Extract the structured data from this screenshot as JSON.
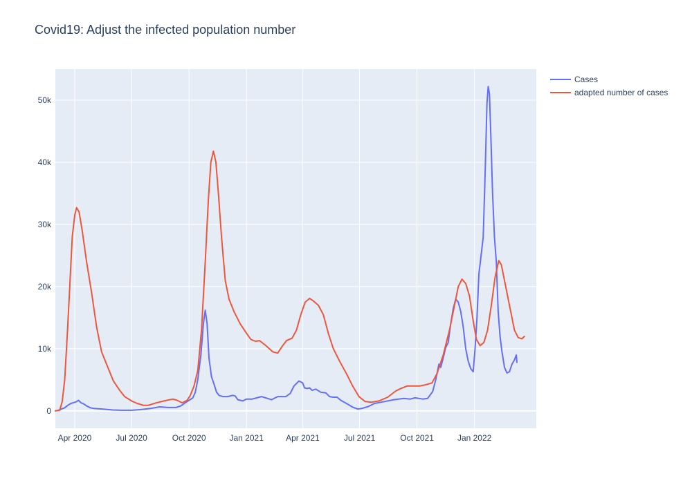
{
  "chart_data": {
    "type": "line",
    "title": "Covid19: Adjust the infected population number",
    "xlabel": "",
    "ylabel": "",
    "x_axis": {
      "type": "date",
      "range": [
        "2020-03-01",
        "2022-04-10"
      ],
      "tick_labels": [
        "Apr 2020",
        "Jul 2020",
        "Oct 2020",
        "Jan 2021",
        "Apr 2021",
        "Jul 2021",
        "Oct 2021",
        "Jan 2022"
      ],
      "tick_dates": [
        "2020-04-01",
        "2020-07-01",
        "2020-10-01",
        "2021-01-01",
        "2021-04-01",
        "2021-07-01",
        "2021-10-01",
        "2022-01-01"
      ]
    },
    "y_axis": {
      "range": [
        -2800,
        55000
      ],
      "tick_values": [
        0,
        10000,
        20000,
        30000,
        40000,
        50000
      ],
      "tick_labels": [
        "0",
        "10k",
        "20k",
        "30k",
        "40k",
        "50k"
      ]
    },
    "grid": true,
    "legend_position": "top-right",
    "colors": {
      "plot_bg": "#e5ecf6",
      "grid": "#ffffff",
      "text": "#2a3f5f"
    },
    "series": [
      {
        "name": "Cases",
        "color": "#636efa",
        "points": [
          [
            "2020-03-01",
            0
          ],
          [
            "2020-03-06",
            100
          ],
          [
            "2020-03-11",
            300
          ],
          [
            "2020-03-16",
            500
          ],
          [
            "2020-03-21",
            900
          ],
          [
            "2020-03-26",
            1200
          ],
          [
            "2020-03-31",
            1350
          ],
          [
            "2020-04-04",
            1500
          ],
          [
            "2020-04-07",
            1700
          ],
          [
            "2020-04-11",
            1300
          ],
          [
            "2020-04-15",
            1150
          ],
          [
            "2020-04-20",
            800
          ],
          [
            "2020-04-26",
            500
          ],
          [
            "2020-05-01",
            400
          ],
          [
            "2020-05-15",
            300
          ],
          [
            "2020-06-01",
            150
          ],
          [
            "2020-06-15",
            100
          ],
          [
            "2020-07-01",
            100
          ],
          [
            "2020-07-15",
            200
          ],
          [
            "2020-08-01",
            400
          ],
          [
            "2020-08-15",
            650
          ],
          [
            "2020-08-28",
            550
          ],
          [
            "2020-09-10",
            550
          ],
          [
            "2020-09-18",
            800
          ],
          [
            "2020-09-25",
            1300
          ],
          [
            "2020-10-01",
            1700
          ],
          [
            "2020-10-07",
            2100
          ],
          [
            "2020-10-11",
            3000
          ],
          [
            "2020-10-15",
            5000
          ],
          [
            "2020-10-20",
            9000
          ],
          [
            "2020-10-24",
            14000
          ],
          [
            "2020-10-27",
            16200
          ],
          [
            "2020-10-30",
            14000
          ],
          [
            "2020-11-02",
            8500
          ],
          [
            "2020-11-06",
            5500
          ],
          [
            "2020-11-10",
            4300
          ],
          [
            "2020-11-14",
            3000
          ],
          [
            "2020-11-18",
            2500
          ],
          [
            "2020-11-24",
            2300
          ],
          [
            "2020-12-02",
            2300
          ],
          [
            "2020-12-10",
            2500
          ],
          [
            "2020-12-14",
            2400
          ],
          [
            "2020-12-18",
            1800
          ],
          [
            "2020-12-26",
            1600
          ],
          [
            "2021-01-01",
            1900
          ],
          [
            "2021-01-10",
            1900
          ],
          [
            "2021-01-25",
            2300
          ],
          [
            "2021-02-10",
            1800
          ],
          [
            "2021-02-20",
            2300
          ],
          [
            "2021-03-05",
            2300
          ],
          [
            "2021-03-12",
            2800
          ],
          [
            "2021-03-18",
            4000
          ],
          [
            "2021-03-26",
            4800
          ],
          [
            "2021-04-01",
            4500
          ],
          [
            "2021-04-04",
            3700
          ],
          [
            "2021-04-08",
            3600
          ],
          [
            "2021-04-12",
            3700
          ],
          [
            "2021-04-16",
            3300
          ],
          [
            "2021-04-22",
            3500
          ],
          [
            "2021-04-30",
            3000
          ],
          [
            "2021-05-08",
            2900
          ],
          [
            "2021-05-14",
            2300
          ],
          [
            "2021-05-20",
            2200
          ],
          [
            "2021-05-26",
            2200
          ],
          [
            "2021-06-01",
            1700
          ],
          [
            "2021-06-10",
            1200
          ],
          [
            "2021-06-20",
            600
          ],
          [
            "2021-06-28",
            300
          ],
          [
            "2021-07-05",
            400
          ],
          [
            "2021-07-15",
            700
          ],
          [
            "2021-07-25",
            1200
          ],
          [
            "2021-08-10",
            1500
          ],
          [
            "2021-08-25",
            1800
          ],
          [
            "2021-09-10",
            2000
          ],
          [
            "2021-09-20",
            1900
          ],
          [
            "2021-09-28",
            2100
          ],
          [
            "2021-10-10",
            1900
          ],
          [
            "2021-10-18",
            2000
          ],
          [
            "2021-10-26",
            3100
          ],
          [
            "2021-10-31",
            5000
          ],
          [
            "2021-11-05",
            7500
          ],
          [
            "2021-11-08",
            7000
          ],
          [
            "2021-11-12",
            8500
          ],
          [
            "2021-11-16",
            10200
          ],
          [
            "2021-11-20",
            11000
          ],
          [
            "2021-11-24",
            14000
          ],
          [
            "2021-11-28",
            16500
          ],
          [
            "2021-12-02",
            18000
          ],
          [
            "2021-12-06",
            17500
          ],
          [
            "2021-12-10",
            16000
          ],
          [
            "2021-12-14",
            13500
          ],
          [
            "2021-12-18",
            10000
          ],
          [
            "2021-12-22",
            8000
          ],
          [
            "2021-12-26",
            6800
          ],
          [
            "2021-12-30",
            6300
          ],
          [
            "2022-01-02",
            10000
          ],
          [
            "2022-01-05",
            15000
          ],
          [
            "2022-01-08",
            22000
          ],
          [
            "2022-01-11",
            24500
          ],
          [
            "2022-01-15",
            28000
          ],
          [
            "2022-01-18",
            38000
          ],
          [
            "2022-01-21",
            49500
          ],
          [
            "2022-01-23",
            52200
          ],
          [
            "2022-01-25",
            51000
          ],
          [
            "2022-01-27",
            45000
          ],
          [
            "2022-01-30",
            35000
          ],
          [
            "2022-02-02",
            28000
          ],
          [
            "2022-02-05",
            24000
          ],
          [
            "2022-02-08",
            16000
          ],
          [
            "2022-02-11",
            12000
          ],
          [
            "2022-02-14",
            9500
          ],
          [
            "2022-02-18",
            7000
          ],
          [
            "2022-02-22",
            6100
          ],
          [
            "2022-02-26",
            6300
          ],
          [
            "2022-03-02",
            7500
          ],
          [
            "2022-03-06",
            8200
          ],
          [
            "2022-03-09",
            9000
          ],
          [
            "2022-03-10",
            7800
          ]
        ]
      },
      {
        "name": "adapted number of cases",
        "color": "#ef553b",
        "points": [
          [
            "2020-03-01",
            0
          ],
          [
            "2020-03-08",
            100
          ],
          [
            "2020-03-12",
            1500
          ],
          [
            "2020-03-16",
            5000
          ],
          [
            "2020-03-20",
            12000
          ],
          [
            "2020-03-24",
            20000
          ],
          [
            "2020-03-28",
            28000
          ],
          [
            "2020-04-01",
            31500
          ],
          [
            "2020-04-04",
            32700
          ],
          [
            "2020-04-08",
            32000
          ],
          [
            "2020-04-13",
            29000
          ],
          [
            "2020-04-20",
            24000
          ],
          [
            "2020-04-28",
            19000
          ],
          [
            "2020-05-06",
            13500
          ],
          [
            "2020-05-14",
            9500
          ],
          [
            "2020-05-24",
            7000
          ],
          [
            "2020-06-02",
            4800
          ],
          [
            "2020-06-12",
            3300
          ],
          [
            "2020-06-20",
            2300
          ],
          [
            "2020-07-01",
            1600
          ],
          [
            "2020-07-10",
            1200
          ],
          [
            "2020-07-20",
            900
          ],
          [
            "2020-07-28",
            900
          ],
          [
            "2020-08-10",
            1300
          ],
          [
            "2020-08-22",
            1600
          ],
          [
            "2020-09-05",
            1900
          ],
          [
            "2020-09-12",
            1700
          ],
          [
            "2020-09-20",
            1300
          ],
          [
            "2020-09-28",
            1700
          ],
          [
            "2020-10-03",
            2500
          ],
          [
            "2020-10-09",
            4000
          ],
          [
            "2020-10-15",
            6500
          ],
          [
            "2020-10-21",
            13000
          ],
          [
            "2020-10-27",
            24000
          ],
          [
            "2020-11-01",
            34000
          ],
          [
            "2020-11-05",
            40000
          ],
          [
            "2020-11-09",
            41800
          ],
          [
            "2020-11-13",
            40000
          ],
          [
            "2020-11-17",
            35000
          ],
          [
            "2020-11-22",
            28000
          ],
          [
            "2020-11-28",
            21000
          ],
          [
            "2020-12-04",
            18000
          ],
          [
            "2020-12-12",
            16000
          ],
          [
            "2020-12-22",
            14000
          ],
          [
            "2021-01-01",
            12500
          ],
          [
            "2021-01-08",
            11500
          ],
          [
            "2021-01-15",
            11200
          ],
          [
            "2021-01-22",
            11300
          ],
          [
            "2021-02-01",
            10500
          ],
          [
            "2021-02-12",
            9500
          ],
          [
            "2021-02-20",
            9300
          ],
          [
            "2021-02-28",
            10500
          ],
          [
            "2021-03-06",
            11300
          ],
          [
            "2021-03-15",
            11700
          ],
          [
            "2021-03-22",
            13000
          ],
          [
            "2021-03-29",
            15500
          ],
          [
            "2021-04-05",
            17500
          ],
          [
            "2021-04-12",
            18100
          ],
          [
            "2021-04-18",
            17700
          ],
          [
            "2021-04-26",
            17000
          ],
          [
            "2021-05-04",
            15500
          ],
          [
            "2021-05-12",
            12500
          ],
          [
            "2021-05-20",
            10000
          ],
          [
            "2021-05-30",
            8000
          ],
          [
            "2021-06-10",
            6000
          ],
          [
            "2021-06-20",
            4000
          ],
          [
            "2021-06-30",
            2300
          ],
          [
            "2021-07-10",
            1500
          ],
          [
            "2021-07-20",
            1400
          ],
          [
            "2021-08-01",
            1600
          ],
          [
            "2021-08-15",
            2200
          ],
          [
            "2021-08-28",
            3200
          ],
          [
            "2021-09-05",
            3600
          ],
          [
            "2021-09-15",
            4000
          ],
          [
            "2021-09-25",
            4000
          ],
          [
            "2021-10-05",
            4000
          ],
          [
            "2021-10-15",
            4200
          ],
          [
            "2021-10-25",
            4500
          ],
          [
            "2021-11-02",
            6000
          ],
          [
            "2021-11-12",
            9000
          ],
          [
            "2021-11-22",
            13000
          ],
          [
            "2021-11-30",
            17000
          ],
          [
            "2021-12-06",
            20000
          ],
          [
            "2021-12-12",
            21200
          ],
          [
            "2021-12-18",
            20500
          ],
          [
            "2021-12-24",
            18500
          ],
          [
            "2021-12-30",
            14500
          ],
          [
            "2022-01-04",
            11500
          ],
          [
            "2022-01-10",
            10500
          ],
          [
            "2022-01-16",
            11000
          ],
          [
            "2022-01-22",
            13000
          ],
          [
            "2022-01-28",
            17000
          ],
          [
            "2022-02-03",
            21500
          ],
          [
            "2022-02-09",
            24200
          ],
          [
            "2022-02-13",
            23500
          ],
          [
            "2022-02-20",
            20000
          ],
          [
            "2022-02-28",
            16000
          ],
          [
            "2022-03-06",
            13000
          ],
          [
            "2022-03-12",
            11800
          ],
          [
            "2022-03-18",
            11600
          ],
          [
            "2022-03-22",
            12000
          ]
        ]
      }
    ]
  }
}
